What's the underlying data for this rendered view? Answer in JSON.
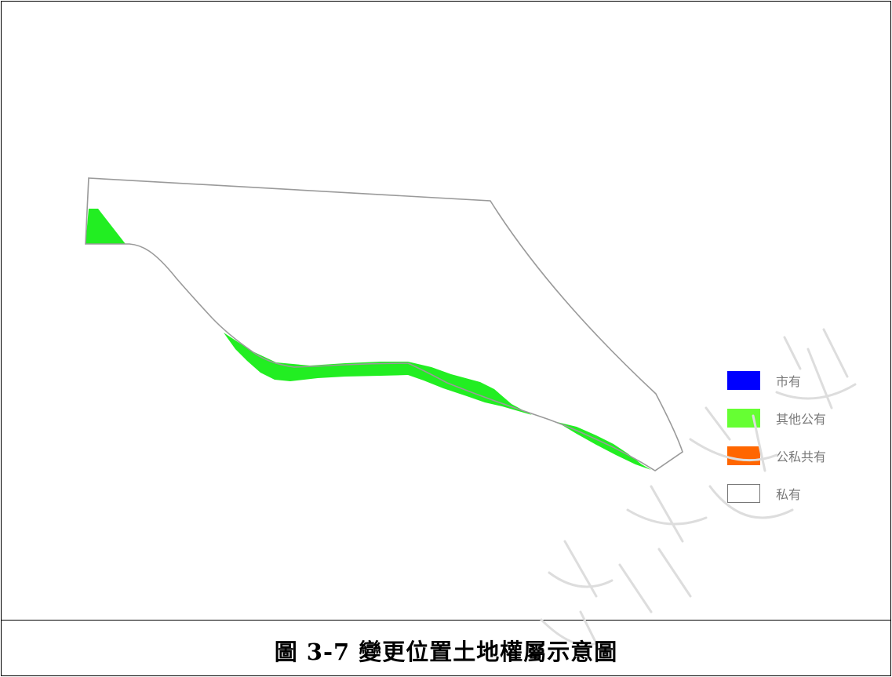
{
  "figure": {
    "caption": "圖 3-7 變更位置土地權屬示意圖"
  },
  "legend": {
    "items": [
      {
        "label": "市有",
        "color": "#0000ff"
      },
      {
        "label": "其他公有",
        "color": "#66ff33"
      },
      {
        "label": "公私共有",
        "color": "#ff6600"
      },
      {
        "label": "私有",
        "color": "#ffffff"
      }
    ]
  },
  "map": {
    "boundary_color": "#9a9a9a",
    "parcel_fill_color": "#22ee22"
  }
}
